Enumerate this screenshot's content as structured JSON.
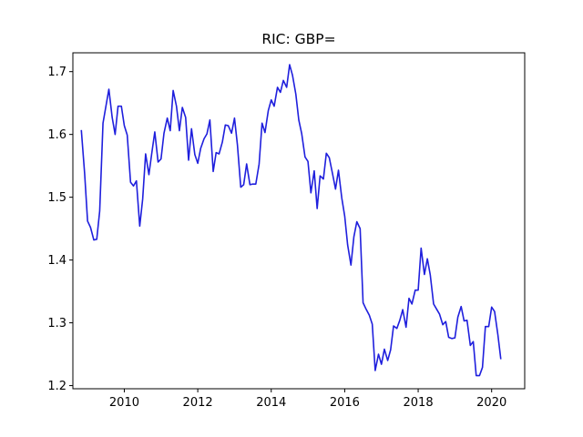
{
  "chart_data": {
    "type": "line",
    "title": "RIC: GBP=",
    "xlabel": "",
    "ylabel": "",
    "xlim": [
      2008.6,
      2020.9
    ],
    "ylim": [
      1.195,
      1.73
    ],
    "grid": false,
    "legend": "none",
    "line_color": "#1f1fdd",
    "x_ticks": [
      2010,
      2012,
      2014,
      2016,
      2018,
      2020
    ],
    "x_tick_labels": [
      "2010",
      "2012",
      "2014",
      "2016",
      "2018",
      "2020"
    ],
    "y_ticks": [
      1.2,
      1.3,
      1.4,
      1.5,
      1.6,
      1.7
    ],
    "y_tick_labels": [
      "1.2",
      "1.3",
      "1.4",
      "1.5",
      "1.6",
      "1.7"
    ],
    "series": [
      {
        "x": [
          2008.83,
          2008.92,
          2009.0,
          2009.08,
          2009.17,
          2009.25,
          2009.33,
          2009.42,
          2009.5,
          2009.58,
          2009.67,
          2009.75,
          2009.83,
          2009.92,
          2010.0,
          2010.08,
          2010.17,
          2010.25,
          2010.33,
          2010.42,
          2010.5,
          2010.58,
          2010.67,
          2010.75,
          2010.83,
          2010.92,
          2011.0,
          2011.08,
          2011.17,
          2011.25,
          2011.33,
          2011.42,
          2011.5,
          2011.58,
          2011.67,
          2011.75,
          2011.83,
          2011.92,
          2012.0,
          2012.08,
          2012.17,
          2012.25,
          2012.33,
          2012.42,
          2012.5,
          2012.58,
          2012.67,
          2012.75,
          2012.83,
          2012.92,
          2013.0,
          2013.08,
          2013.17,
          2013.25,
          2013.33,
          2013.42,
          2013.5,
          2013.58,
          2013.67,
          2013.75,
          2013.83,
          2013.92,
          2014.0,
          2014.08,
          2014.17,
          2014.25,
          2014.33,
          2014.42,
          2014.5,
          2014.58,
          2014.67,
          2014.75,
          2014.83,
          2014.92,
          2015.0,
          2015.08,
          2015.17,
          2015.25,
          2015.33,
          2015.42,
          2015.5,
          2015.58,
          2015.67,
          2015.75,
          2015.83,
          2015.92,
          2016.0,
          2016.08,
          2016.17,
          2016.25,
          2016.33,
          2016.42,
          2016.5,
          2016.58,
          2016.67,
          2016.75,
          2016.83,
          2016.92,
          2017.0,
          2017.08,
          2017.17,
          2017.25,
          2017.33,
          2017.42,
          2017.5,
          2017.58,
          2017.67,
          2017.75,
          2017.83,
          2017.92,
          2018.0,
          2018.08,
          2018.17,
          2018.25,
          2018.33,
          2018.42,
          2018.5,
          2018.58,
          2018.67,
          2018.75,
          2018.83,
          2018.92,
          2019.0,
          2019.08,
          2019.17,
          2019.25,
          2019.33,
          2019.42,
          2019.5,
          2019.58,
          2019.67,
          2019.75,
          2019.83,
          2019.92,
          2020.0,
          2020.08,
          2020.17,
          2020.25
        ],
        "y": [
          1.607,
          1.538,
          1.462,
          1.452,
          1.432,
          1.433,
          1.478,
          1.618,
          1.645,
          1.672,
          1.627,
          1.6,
          1.645,
          1.645,
          1.614,
          1.599,
          1.524,
          1.518,
          1.526,
          1.454,
          1.497,
          1.569,
          1.536,
          1.571,
          1.604,
          1.556,
          1.561,
          1.602,
          1.626,
          1.606,
          1.67,
          1.645,
          1.606,
          1.643,
          1.627,
          1.559,
          1.609,
          1.568,
          1.554,
          1.578,
          1.593,
          1.601,
          1.623,
          1.541,
          1.571,
          1.569,
          1.588,
          1.615,
          1.614,
          1.602,
          1.626,
          1.583,
          1.516,
          1.52,
          1.553,
          1.52,
          1.521,
          1.521,
          1.553,
          1.618,
          1.603,
          1.638,
          1.655,
          1.645,
          1.675,
          1.667,
          1.686,
          1.675,
          1.711,
          1.694,
          1.664,
          1.623,
          1.601,
          1.564,
          1.557,
          1.507,
          1.542,
          1.482,
          1.534,
          1.529,
          1.57,
          1.563,
          1.537,
          1.513,
          1.543,
          1.499,
          1.47,
          1.424,
          1.392,
          1.437,
          1.461,
          1.45,
          1.332,
          1.322,
          1.312,
          1.298,
          1.224,
          1.25,
          1.234,
          1.258,
          1.24,
          1.257,
          1.295,
          1.291,
          1.304,
          1.321,
          1.293,
          1.339,
          1.33,
          1.352,
          1.352,
          1.419,
          1.377,
          1.402,
          1.376,
          1.33,
          1.322,
          1.314,
          1.297,
          1.302,
          1.277,
          1.275,
          1.276,
          1.309,
          1.326,
          1.303,
          1.304,
          1.264,
          1.27,
          1.216,
          1.216,
          1.229,
          1.294,
          1.294,
          1.325,
          1.318,
          1.281,
          1.242
        ]
      }
    ]
  }
}
